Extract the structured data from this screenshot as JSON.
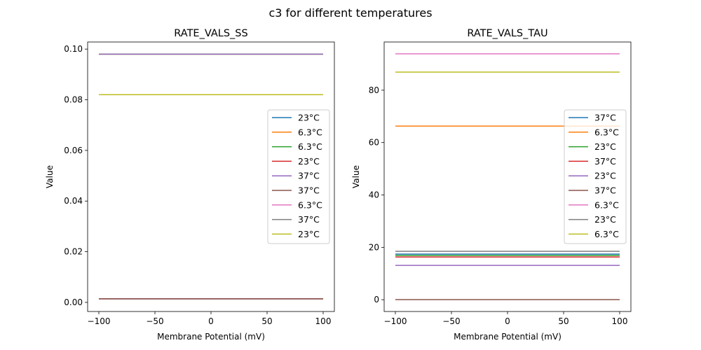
{
  "suptitle": "c3 for different temperatures",
  "chart_data": [
    {
      "type": "line",
      "title": "RATE_VALS_SS",
      "xlabel": "Membrane Potential (mV)",
      "ylabel": "Value",
      "xlim": [
        -110,
        110
      ],
      "ylim": [
        -0.0036,
        0.1028
      ],
      "xticks": [
        -100,
        -50,
        0,
        50,
        100
      ],
      "xtick_labels": [
        "−100",
        "−50",
        "0",
        "50",
        "100"
      ],
      "yticks": [
        0,
        0.02,
        0.04,
        0.06,
        0.08,
        0.1
      ],
      "ytick_labels": [
        "0.00",
        "0.02",
        "0.04",
        "0.06",
        "0.08",
        "0.10"
      ],
      "legend_position": "center-right",
      "grid": false,
      "x": [
        -100,
        100
      ],
      "series": [
        {
          "name": "23°C",
          "color": "#1f77b4",
          "values": [
            0.0014,
            0.0014
          ]
        },
        {
          "name": "6.3°C",
          "color": "#ff7f0e",
          "values": [
            0.098,
            0.098
          ]
        },
        {
          "name": "6.3°C",
          "color": "#2ca02c",
          "values": [
            0.098,
            0.098
          ]
        },
        {
          "name": "23°C",
          "color": "#d62728",
          "values": [
            0.0014,
            0.0014
          ]
        },
        {
          "name": "37°C",
          "color": "#9467bd",
          "values": [
            0.098,
            0.098
          ]
        },
        {
          "name": "37°C",
          "color": "#8c564b",
          "values": [
            0.0014,
            0.0014
          ]
        },
        {
          "name": "6.3°C",
          "color": "#e377c2",
          "values": [
            0.082,
            0.082
          ]
        },
        {
          "name": "37°C",
          "color": "#7f7f7f",
          "values": [
            0.082,
            0.082
          ]
        },
        {
          "name": "23°C",
          "color": "#bcbd22",
          "values": [
            0.082,
            0.082
          ]
        }
      ]
    },
    {
      "type": "line",
      "title": "RATE_VALS_TAU",
      "xlabel": "Membrane Potential (mV)",
      "ylabel": "Value",
      "xlim": [
        -110,
        110
      ],
      "ylim": [
        -4.5,
        98.4
      ],
      "xticks": [
        -100,
        -50,
        0,
        50,
        100
      ],
      "xtick_labels": [
        "−100",
        "−50",
        "0",
        "50",
        "100"
      ],
      "yticks": [
        0,
        20,
        40,
        60,
        80
      ],
      "ytick_labels": [
        "0",
        "20",
        "40",
        "60",
        "80"
      ],
      "legend_position": "center-right",
      "grid": false,
      "x": [
        -100,
        100
      ],
      "series": [
        {
          "name": "37°C",
          "color": "#1f77b4",
          "values": [
            17.4,
            17.4
          ]
        },
        {
          "name": "6.3°C",
          "color": "#ff7f0e",
          "values": [
            66.3,
            66.3
          ]
        },
        {
          "name": "23°C",
          "color": "#2ca02c",
          "values": [
            16.9,
            16.9
          ]
        },
        {
          "name": "37°C",
          "color": "#d62728",
          "values": [
            16.3,
            16.3
          ]
        },
        {
          "name": "23°C",
          "color": "#9467bd",
          "values": [
            13.1,
            13.1
          ]
        },
        {
          "name": "37°C",
          "color": "#8c564b",
          "values": [
            0.05,
            0.05
          ]
        },
        {
          "name": "6.3°C",
          "color": "#e377c2",
          "values": [
            93.9,
            93.9
          ]
        },
        {
          "name": "23°C",
          "color": "#7f7f7f",
          "values": [
            18.5,
            18.5
          ]
        },
        {
          "name": "6.3°C",
          "color": "#bcbd22",
          "values": [
            86.9,
            86.9
          ]
        }
      ]
    }
  ]
}
